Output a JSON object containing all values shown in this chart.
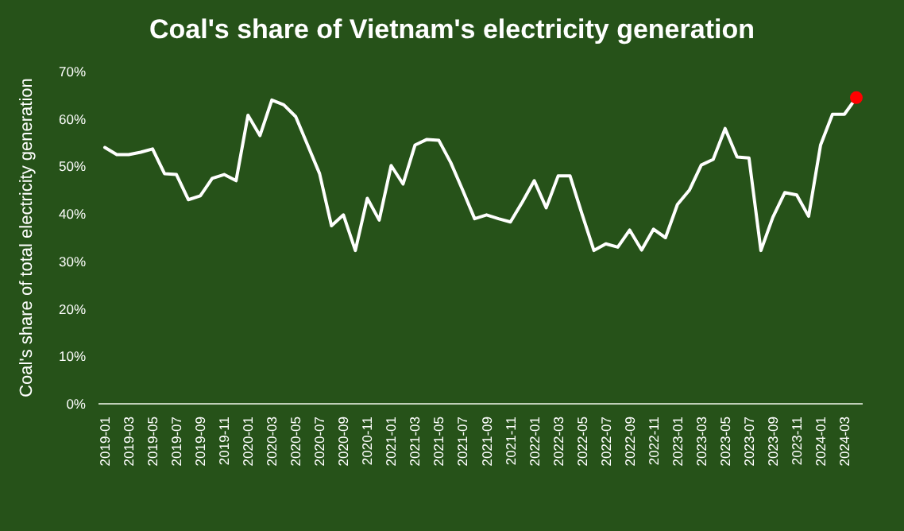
{
  "chart_data": {
    "type": "line",
    "title": "Coal's share of Vietnam's electricity generation",
    "ylabel": "Coal's share of total electricity generation",
    "categories": [
      "2019-01",
      null,
      "2019-03",
      null,
      "2019-05",
      null,
      "2019-07",
      null,
      "2019-09",
      null,
      "2019-11",
      null,
      "2020-01",
      null,
      "2020-03",
      null,
      "2020-05",
      null,
      "2020-07",
      null,
      "2020-09",
      null,
      "2020-11",
      null,
      "2021-01",
      null,
      "2021-03",
      null,
      "2021-05",
      null,
      "2021-07",
      null,
      "2021-09",
      null,
      "2021-11",
      null,
      "2022-01",
      null,
      "2022-03",
      null,
      "2022-05",
      null,
      "2022-07",
      null,
      "2022-09",
      null,
      "2022-11",
      null,
      "2023-01",
      null,
      "2023-03",
      null,
      "2023-05",
      null,
      "2023-07",
      null,
      "2023-09",
      null,
      "2023-11",
      null,
      "2024-01",
      null,
      "2024-03",
      null
    ],
    "series": [
      {
        "color": "#ffffff",
        "values": [
          54,
          52.5,
          52.5,
          53,
          53.7,
          48.5,
          48.3,
          43,
          43.8,
          47.5,
          48.3,
          47,
          60.8,
          56.5,
          64,
          63,
          60.5,
          54.5,
          48.5,
          37.5,
          39.8,
          32.3,
          43.3,
          38.7,
          50.2,
          46.3,
          54.5,
          55.7,
          55.5,
          50.8,
          45,
          39,
          39.8,
          39,
          38.3,
          42.5,
          47,
          41.3,
          48,
          48,
          40,
          32.3,
          33.7,
          33,
          36.6,
          32.4,
          36.8,
          35,
          42,
          45,
          50.3,
          51.5,
          58,
          52,
          51.8,
          32.3,
          39.3,
          44.5,
          44,
          39.5,
          54.5,
          61,
          61,
          64.5
        ]
      },
      {
        "type": "scatter",
        "color": "#ff0000",
        "marker": "circle",
        "values": [
          null,
          null,
          null,
          null,
          null,
          null,
          null,
          null,
          null,
          null,
          null,
          null,
          null,
          null,
          null,
          null,
          null,
          null,
          null,
          null,
          null,
          null,
          null,
          null,
          null,
          null,
          null,
          null,
          null,
          null,
          null,
          null,
          null,
          null,
          null,
          null,
          null,
          null,
          null,
          null,
          null,
          null,
          null,
          null,
          null,
          null,
          null,
          null,
          null,
          null,
          null,
          null,
          null,
          null,
          null,
          null,
          null,
          null,
          null,
          null,
          null,
          null,
          null,
          64.5
        ]
      }
    ],
    "ylim": [
      0,
      70
    ],
    "yticks": [
      {
        "value": 0,
        "label": "0%"
      },
      {
        "value": 10,
        "label": "10%"
      },
      {
        "value": 20,
        "label": "20%"
      },
      {
        "value": 30,
        "label": "30%"
      },
      {
        "value": 40,
        "label": "40%"
      },
      {
        "value": 50,
        "label": "50%"
      },
      {
        "value": 60,
        "label": "60%"
      },
      {
        "value": 70,
        "label": "70%"
      }
    ],
    "grid": false,
    "line_style": "solid"
  }
}
